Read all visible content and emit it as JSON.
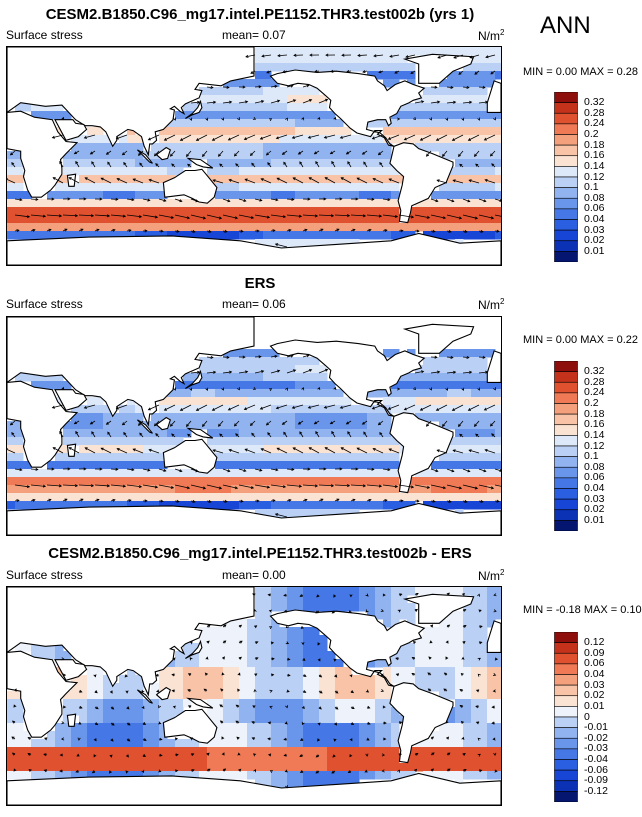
{
  "season": "ANN",
  "panels": [
    {
      "title": "CESM2.B1850.C96_mg17.intel.PE1152.THR3.test002b (yrs 1)",
      "variable": "Surface stress",
      "mean_label": "mean=",
      "mean": "0.07",
      "units": "N/m",
      "units_sup": "2",
      "min_label": "MIN =",
      "min": "0.00",
      "max_label": "MAX =",
      "max": "0.28",
      "levels": [
        "0.32",
        "0.28",
        "0.24",
        "0.2",
        "0.18",
        "0.16",
        "0.14",
        "0.12",
        "0.1",
        "0.08",
        "0.06",
        "0.04",
        "0.03",
        "0.02",
        "0.01"
      ]
    },
    {
      "title": "ERS",
      "variable": "Surface stress",
      "mean_label": "mean=",
      "mean": "0.06",
      "units": "N/m",
      "units_sup": "2",
      "min_label": "MIN =",
      "min": "0.00",
      "max_label": "MAX =",
      "max": "0.22",
      "levels": [
        "0.32",
        "0.28",
        "0.24",
        "0.2",
        "0.18",
        "0.16",
        "0.14",
        "0.12",
        "0.1",
        "0.08",
        "0.06",
        "0.04",
        "0.03",
        "0.02",
        "0.01"
      ]
    },
    {
      "title": "CESM2.B1850.C96_mg17.intel.PE1152.THR3.test002b - ERS",
      "variable": "Surface stress",
      "mean_label": "mean=",
      "mean": "0.00",
      "units": "N/m",
      "units_sup": "2",
      "min_label": "MIN =",
      "min": "-0.18",
      "max_label": "MAX =",
      "max": "0.10",
      "levels": [
        "0.12",
        "0.09",
        "0.06",
        "0.04",
        "0.03",
        "0.02",
        "0.01",
        "0",
        "-0.01",
        "-0.02",
        "-0.03",
        "-0.04",
        "-0.06",
        "-0.09",
        "-0.12"
      ]
    }
  ],
  "chart_data": [
    {
      "type": "heatmap",
      "title": "CESM2.B1850.C96_mg17.intel.PE1152.THR3.test002b (yrs 1)",
      "variable": "Surface stress",
      "units": "N/m2",
      "mean": 0.07,
      "min": 0.0,
      "max": 0.28,
      "colorbar_levels": [
        0.01,
        0.02,
        0.03,
        0.04,
        0.06,
        0.08,
        0.1,
        0.12,
        0.14,
        0.16,
        0.18,
        0.2,
        0.24,
        0.28,
        0.32
      ],
      "colorbar_colors": [
        "#04166f",
        "#0b31b4",
        "#1746d6",
        "#2a5fe2",
        "#4578e6",
        "#6995ea",
        "#91b3f0",
        "#bad0f5",
        "#dde8f8",
        "#fbe3d3",
        "#f9c3a7",
        "#f5a07c",
        "#ef7a55",
        "#e0512f",
        "#c4321b",
        "#8e0e0b"
      ]
    },
    {
      "type": "heatmap",
      "title": "ERS",
      "variable": "Surface stress",
      "units": "N/m2",
      "mean": 0.06,
      "min": 0.0,
      "max": 0.22,
      "colorbar_levels": [
        0.01,
        0.02,
        0.03,
        0.04,
        0.06,
        0.08,
        0.1,
        0.12,
        0.14,
        0.16,
        0.18,
        0.2,
        0.24,
        0.28,
        0.32
      ],
      "colorbar_colors": [
        "#04166f",
        "#0b31b4",
        "#1746d6",
        "#2a5fe2",
        "#4578e6",
        "#6995ea",
        "#91b3f0",
        "#bad0f5",
        "#dde8f8",
        "#fbe3d3",
        "#f9c3a7",
        "#f5a07c",
        "#ef7a55",
        "#e0512f",
        "#c4321b",
        "#8e0e0b"
      ]
    },
    {
      "type": "heatmap",
      "title": "CESM2.B1850.C96_mg17.intel.PE1152.THR3.test002b - ERS",
      "variable": "Surface stress",
      "units": "N/m2",
      "mean": 0.0,
      "min": -0.18,
      "max": 0.1,
      "colorbar_levels": [
        -0.12,
        -0.09,
        -0.06,
        -0.04,
        -0.03,
        -0.02,
        -0.01,
        0,
        0.01,
        0.02,
        0.03,
        0.04,
        0.06,
        0.09,
        0.12
      ],
      "colorbar_colors": [
        "#04166f",
        "#0b31b4",
        "#1746d6",
        "#2a5fe2",
        "#4578e6",
        "#6995ea",
        "#91b3f0",
        "#bad0f5",
        "#eef3fb",
        "#fbe3d3",
        "#f9c3a7",
        "#f5a07c",
        "#ef7a55",
        "#e0512f",
        "#c4321b",
        "#8e0e0b"
      ]
    }
  ]
}
